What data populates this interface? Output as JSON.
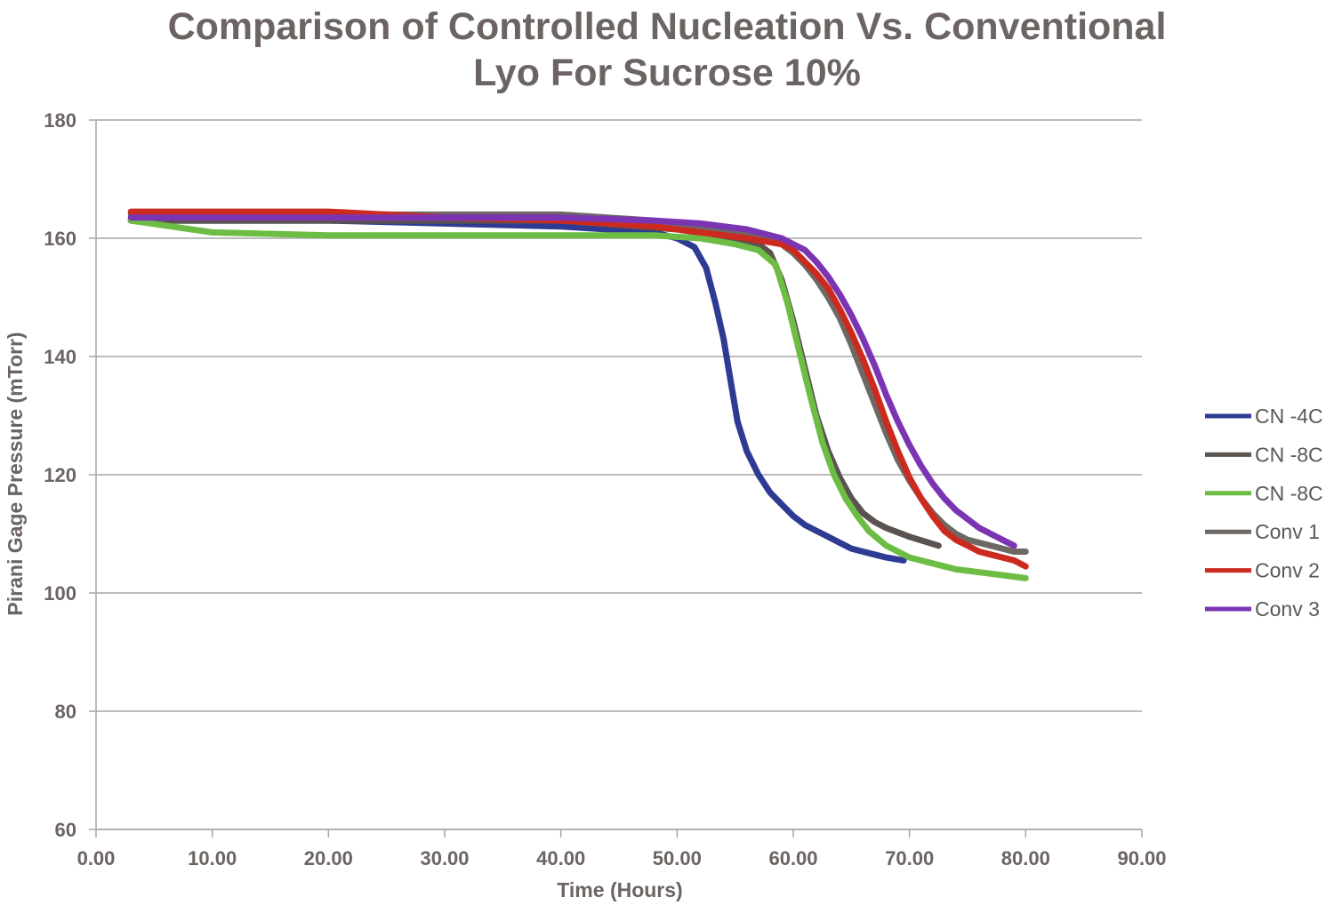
{
  "chart_data": {
    "type": "line",
    "title_lines": [
      "Comparison of Controlled Nucleation Vs. Conventional",
      "Lyo For Sucrose 10%"
    ],
    "xlabel": "Time (Hours)",
    "ylabel": "Pirani Gage Pressure (mTorr)",
    "xlim": [
      0,
      90
    ],
    "ylim": [
      60,
      180
    ],
    "x_ticks": [
      "0.00",
      "10.00",
      "20.00",
      "30.00",
      "40.00",
      "50.00",
      "60.00",
      "70.00",
      "80.00",
      "90.00"
    ],
    "y_ticks": [
      "60",
      "80",
      "100",
      "120",
      "140",
      "160",
      "180"
    ],
    "grid": "horizontal",
    "legend_position": "right",
    "series": [
      {
        "name": "CN -4C",
        "color": "#2e3b93",
        "x": [
          3,
          10,
          20,
          30,
          40,
          48,
          50,
          51.5,
          52.5,
          53.3,
          54,
          54.6,
          55.2,
          56,
          57,
          58,
          59,
          60,
          61,
          62,
          63,
          64,
          65,
          66,
          67,
          68,
          69.5
        ],
        "y": [
          163,
          163,
          163,
          162.5,
          162,
          161,
          160,
          158.5,
          155,
          149,
          143,
          136,
          129,
          124,
          120,
          117,
          115,
          113,
          111.5,
          110.5,
          109.5,
          108.5,
          107.5,
          107,
          106.5,
          106,
          105.5
        ]
      },
      {
        "name": "CN -8C",
        "color": "#5b534f",
        "x": [
          3,
          10,
          20,
          30,
          40,
          50,
          55,
          57,
          58,
          59,
          60,
          61,
          62,
          63,
          64,
          65,
          66,
          67,
          68,
          70,
          72.5
        ],
        "y": [
          163,
          163,
          163,
          163,
          163,
          161.5,
          160,
          159,
          157.5,
          153,
          146,
          138,
          130,
          124,
          119.5,
          116,
          113.5,
          112,
          111,
          109.5,
          108
        ]
      },
      {
        "name": "CN -8C",
        "color": "#6dbd45",
        "x": [
          3,
          10,
          20,
          30,
          40,
          48,
          52,
          55,
          57,
          58.5,
          59.5,
          60.5,
          61.5,
          62.5,
          63.5,
          64.5,
          65.5,
          66.5,
          68,
          70,
          72,
          74,
          76,
          78,
          80
        ],
        "y": [
          163,
          161,
          160.5,
          160.5,
          160.5,
          160.5,
          160,
          159,
          158,
          155.5,
          149,
          141,
          133,
          125.5,
          120,
          116,
          113,
          110.5,
          108,
          106,
          105,
          104,
          103.5,
          103,
          102.5
        ]
      },
      {
        "name": "Conv 1",
        "color": "#6e6865",
        "x": [
          3,
          10,
          20,
          30,
          40,
          48,
          52,
          56,
          59,
          60,
          61,
          62,
          63,
          64,
          65,
          66,
          67,
          68,
          69,
          70,
          71,
          72,
          73,
          74,
          75,
          76,
          77,
          78,
          79,
          80
        ],
        "y": [
          164,
          164,
          164,
          164,
          164,
          163,
          162,
          161,
          159,
          157.5,
          155.5,
          153,
          150,
          146.5,
          142,
          137,
          132,
          127,
          122.5,
          119,
          116,
          113.5,
          111.5,
          110,
          109,
          108.5,
          108,
          107.5,
          107,
          107
        ]
      },
      {
        "name": "Conv 2",
        "color": "#cc2a1e",
        "x": [
          3,
          10,
          20,
          30,
          40,
          48,
          52,
          56,
          59,
          60,
          61,
          62,
          63,
          64,
          65,
          66,
          67,
          68,
          69,
          70,
          71,
          72,
          73,
          74,
          75,
          76,
          77,
          78,
          79,
          80
        ],
        "y": [
          164.5,
          164.5,
          164.5,
          163.5,
          163,
          162,
          161,
          160,
          159,
          158,
          156,
          154,
          151.5,
          148,
          144,
          139.5,
          134.5,
          129,
          124,
          119.5,
          116,
          113,
          110.5,
          109,
          108,
          107,
          106.5,
          106,
          105.5,
          104.5
        ]
      },
      {
        "name": "Conv 3",
        "color": "#7b35b3",
        "x": [
          3,
          10,
          20,
          30,
          40,
          48,
          52,
          56,
          59,
          61,
          62,
          63,
          64,
          65,
          66,
          67,
          68,
          69,
          70,
          71,
          72,
          73,
          74,
          75,
          76,
          77,
          78,
          79
        ],
        "y": [
          163.5,
          163.5,
          163.5,
          163.5,
          163.5,
          163,
          162.5,
          161.5,
          160,
          158,
          156,
          153.5,
          150.5,
          147,
          143,
          138.5,
          133.5,
          129,
          125,
          121.5,
          118.5,
          116,
          114,
          112.5,
          111,
          110,
          109,
          108
        ]
      }
    ]
  }
}
